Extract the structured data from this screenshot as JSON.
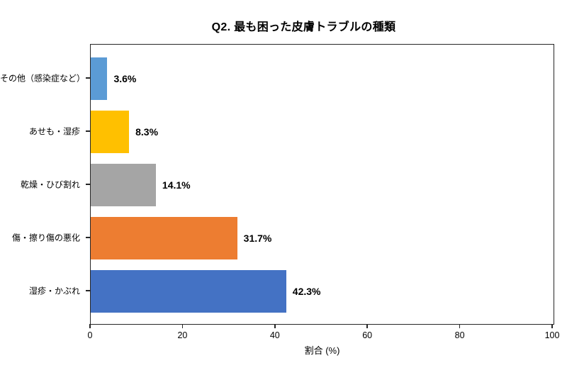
{
  "title": "Q2. 最も困った皮膚トラブルの種類",
  "chart_data": {
    "type": "bar",
    "orientation": "horizontal",
    "title": "Q2. 最も困った皮膚トラブルの種類",
    "categories": [
      "その他（感染症など）",
      "あせも・湿疹",
      "乾燥・ひび割れ",
      "傷・擦り傷の悪化",
      "湿疹・かぶれ"
    ],
    "values": [
      3.6,
      8.3,
      14.1,
      31.7,
      42.3
    ],
    "value_labels": [
      "3.6%",
      "8.3%",
      "14.1%",
      "31.7%",
      "42.3%"
    ],
    "bar_colors": [
      "#5B9BD5",
      "#FFC000",
      "#A5A5A5",
      "#ED7D31",
      "#4472C4"
    ],
    "xlabel": "割合 (%)",
    "ylabel": "",
    "xlim": [
      0,
      100
    ],
    "x_ticks": [
      0,
      20,
      40,
      60,
      80,
      100
    ],
    "x_tick_labels": [
      "0",
      "20",
      "40",
      "60",
      "80",
      "100"
    ],
    "grid": false,
    "legend": "none",
    "frame": "full-box",
    "frame_color": "#262626",
    "background_color": "#ffffff",
    "text_color": "#000000"
  }
}
